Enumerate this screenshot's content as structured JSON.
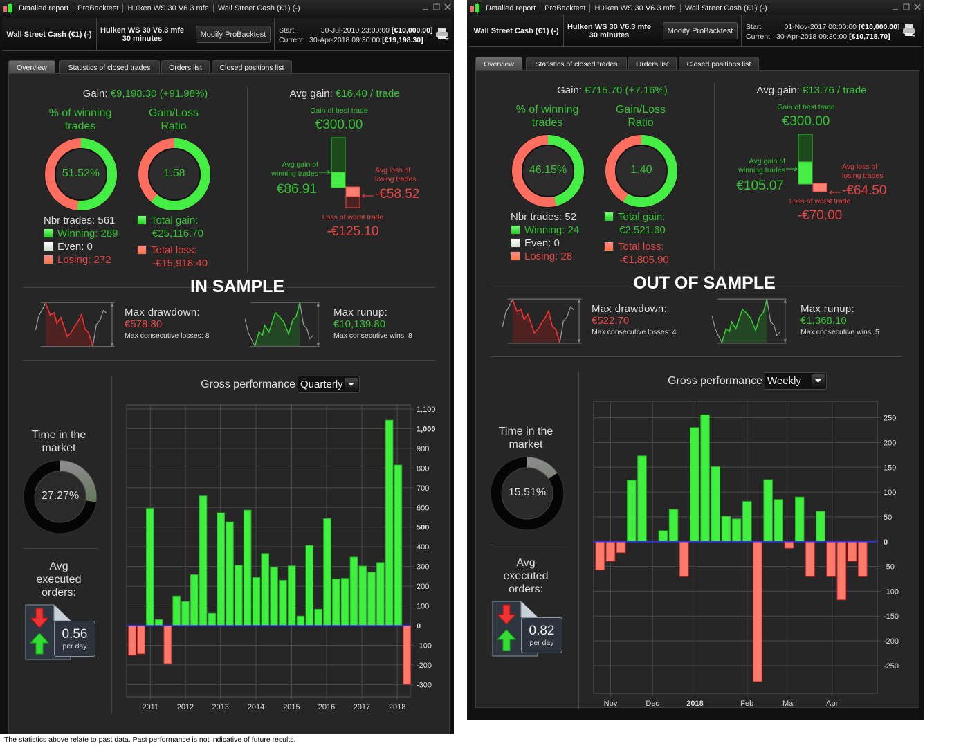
{
  "colors": {
    "gain": "#33c433",
    "loss": "#e84444",
    "bar_gain": "#3ff03f",
    "bar_loss": "#ff7a6a",
    "zero_line": "#3333ff"
  },
  "panels": [
    {
      "title_bar": [
        "Detailed report",
        "ProBacktest",
        "Hulken WS 30 V6.3 mfe",
        "Wall Street Cash (€1) (-)"
      ],
      "header": {
        "instrument": "Wall Street Cash (€1) (-)",
        "strategy": "Hulken WS 30 V6.3 mfe",
        "timeframe": "30 minutes",
        "modify_label": "Modify ProBacktest",
        "start_label": "Start:",
        "start_value": "30-Jul-2010 23:00:00",
        "start_capital": "[€10,000.00]",
        "current_label": "Current:",
        "current_value": "30-Apr-2018 09:30:00",
        "current_capital": "[€19,198.30]"
      },
      "tabs": [
        "Overview",
        "Statistics of closed trades",
        "Orders list",
        "Closed positions list"
      ],
      "gain_label": "Gain:",
      "gain_value": "€9,198.30 (+91.98%)",
      "win_title": "% of winning trades",
      "win_value": "51.52%",
      "win_fraction": 0.5152,
      "ratio_title": "Gain/Loss Ratio",
      "ratio_value": "1.58",
      "ratio_gain_fraction": 0.612,
      "nbr_trades": "Nbr trades: 561",
      "winning": "Winning: 289",
      "even": "Even: 0",
      "losing": "Losing: 272",
      "total_gain_label": "Total gain:",
      "total_gain": "€25,116.70",
      "total_loss_label": "Total loss:",
      "total_loss": "-€15,918.40",
      "avg_gain_label": "Avg gain:",
      "avg_gain_value": "€16.40 / trade",
      "best_label": "Gain of best trade",
      "best_value": "€300.00",
      "avg_win_label": "Avg gain of winning trades",
      "avg_win_value": "€86.91",
      "avg_loss_label": "Avg loss of losing trades",
      "avg_loss_value": "-€58.52",
      "worst_label": "Loss of worst trade",
      "worst_value": "-€125.10",
      "sample_title": "IN SAMPLE",
      "dd_label": "Max drawdown:",
      "dd_value": "€578.80",
      "dd_sub": "Max consecutive losses: 8",
      "ru_label": "Max runup:",
      "ru_value": "€10,139.80",
      "ru_sub": "Max consecutive wins: 8",
      "time_title": "Time in the market",
      "time_value": "27.27%",
      "time_fraction": 0.2727,
      "orders_title": "Avg executed orders:",
      "orders_value": "0.56",
      "orders_unit": "per day",
      "perf_label": "Gross performance",
      "perf_period": "Quarterly",
      "footer": "The statistics above relate to past data. Past performance is not indicative of future results."
    },
    {
      "title_bar": [
        "Detailed report",
        "ProBacktest",
        "Hulken WS 30 V6.3 mfe",
        "Wall Street Cash (€1) (-)"
      ],
      "header": {
        "instrument": "Wall Street Cash (€1) (-)",
        "strategy": "Hulken WS 30 V6.3 mfe",
        "timeframe": "30 minutes",
        "modify_label": "Modify ProBacktest",
        "start_label": "Start:",
        "start_value": "01-Nov-2017 00:00:00",
        "start_capital": "[€10,000.00]",
        "current_label": "Current:",
        "current_value": "30-Apr-2018 09:30:00",
        "current_capital": "[€10,715.70]"
      },
      "tabs": [
        "Overview",
        "Statistics of closed trades",
        "Orders list",
        "Closed positions list"
      ],
      "gain_label": "Gain:",
      "gain_value": "€715.70 (+7.16%)",
      "win_title": "% of winning trades",
      "win_value": "46.15%",
      "win_fraction": 0.4615,
      "ratio_title": "Gain/Loss Ratio",
      "ratio_value": "1.40",
      "ratio_gain_fraction": 0.583,
      "nbr_trades": "Nbr trades: 52",
      "winning": "Winning: 24",
      "even": "Even: 0",
      "losing": "Losing: 28",
      "total_gain_label": "Total gain:",
      "total_gain": "€2,521.60",
      "total_loss_label": "Total loss:",
      "total_loss": "-€1,805.90",
      "avg_gain_label": "Avg gain:",
      "avg_gain_value": "€13.76 / trade",
      "best_label": "Gain of best trade",
      "best_value": "€300.00",
      "avg_win_label": "Avg gain of winning trades",
      "avg_win_value": "€105.07",
      "avg_loss_label": "Avg loss of losing trades",
      "avg_loss_value": "-€64.50",
      "worst_label": "Loss of worst trade",
      "worst_value": "-€70.00",
      "sample_title": "OUT OF SAMPLE",
      "dd_label": "Max drawdown:",
      "dd_value": "€522.70",
      "dd_sub": "Max consecutive losses: 4",
      "ru_label": "Max runup:",
      "ru_value": "€1,368.10",
      "ru_sub": "Max consecutive wins: 5",
      "time_title": "Time in the market",
      "time_value": "15.51%",
      "time_fraction": 0.1551,
      "orders_title": "Avg executed orders:",
      "orders_value": "0.82",
      "orders_unit": "per day",
      "perf_label": "Gross performance",
      "perf_period": "Weekly"
    }
  ],
  "chart_data": [
    {
      "type": "bar",
      "title": "Gross performance",
      "period": "Quarterly",
      "values": [
        -150,
        -143,
        595,
        30,
        -193,
        150,
        122,
        258,
        658,
        62,
        572,
        526,
        306,
        586,
        244,
        366,
        296,
        230,
        303,
        48,
        407,
        83,
        543,
        237,
        240,
        348,
        302,
        271,
        320,
        1043,
        815,
        -298
      ],
      "xlim": [
        -0.63,
        31.37
      ],
      "ylim": [
        -362,
        1121
      ],
      "yticks": [
        {
          "v": 1100,
          "label": "1,100"
        },
        {
          "v": 1000,
          "label": "1,000",
          "bold": true
        },
        {
          "v": 900,
          "label": "900"
        },
        {
          "v": 800,
          "label": "800"
        },
        {
          "v": 700,
          "label": "700"
        },
        {
          "v": 600,
          "label": "600"
        },
        {
          "v": 500,
          "label": "500",
          "bold": true
        },
        {
          "v": 400,
          "label": "400"
        },
        {
          "v": 300,
          "label": "300"
        },
        {
          "v": 200,
          "label": "200"
        },
        {
          "v": 100,
          "label": "100"
        },
        {
          "v": 0,
          "label": "0",
          "bold": true
        },
        {
          "v": -100,
          "label": "-100"
        },
        {
          "v": -200,
          "label": "-200"
        },
        {
          "v": -300,
          "label": "-300"
        }
      ],
      "xticks": [
        {
          "at": 2.04,
          "label": "2011"
        },
        {
          "at": 6.0,
          "label": "2012"
        },
        {
          "at": 9.96,
          "label": "2013"
        },
        {
          "at": 13.97,
          "label": "2014"
        },
        {
          "at": 17.98,
          "label": "2015"
        },
        {
          "at": 21.93,
          "label": "2016"
        },
        {
          "at": 25.9,
          "label": "2017"
        },
        {
          "at": 29.9,
          "label": "2018"
        }
      ],
      "grid": true
    },
    {
      "type": "bar",
      "title": "Gross performance",
      "period": "Weekly",
      "values": [
        -57,
        -39,
        -22,
        124,
        173,
        0,
        22,
        65,
        -70,
        230,
        256,
        151,
        51,
        46,
        81,
        -282,
        125,
        85,
        -13,
        90,
        -70,
        61,
        -70,
        -117,
        -39,
        -70
      ],
      "xlim": [
        -0.61,
        26.4
      ],
      "ylim": [
        -306,
        283
      ],
      "yticks": [
        {
          "v": 250,
          "label": "250"
        },
        {
          "v": 200,
          "label": "200"
        },
        {
          "v": 150,
          "label": "150"
        },
        {
          "v": 100,
          "label": "100"
        },
        {
          "v": 50,
          "label": "50"
        },
        {
          "v": 0,
          "label": "0",
          "bold": true
        },
        {
          "v": -50,
          "label": "-50"
        },
        {
          "v": -100,
          "label": "-100"
        },
        {
          "v": -150,
          "label": "-150"
        },
        {
          "v": -200,
          "label": "-200"
        },
        {
          "v": -250,
          "label": "-250"
        }
      ],
      "xticks": [
        {
          "at": 1.0,
          "label": "Nov"
        },
        {
          "at": 5.0,
          "label": "Dec"
        },
        {
          "at": 9.04,
          "label": "2018",
          "bold": true
        },
        {
          "at": 14.0,
          "label": "Feb"
        },
        {
          "at": 18.0,
          "label": "Mar"
        },
        {
          "at": 22.1,
          "label": "Apr"
        }
      ],
      "grid": true
    }
  ]
}
